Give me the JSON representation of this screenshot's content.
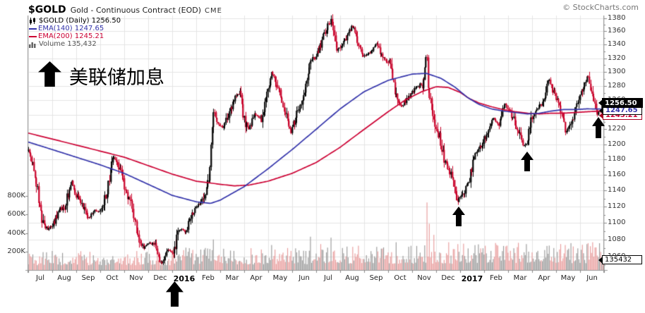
{
  "header": {
    "symbol": "$GOLD",
    "description": "Gold - Continuous Contract (EOD)",
    "exchange": "CME",
    "credit": "© StockCharts.com"
  },
  "legend": {
    "symbol_row": "$GOLD (Daily) 1256.50",
    "ema140_row": "EMA(140) 1247.65",
    "ema200_row": "EMA(200) 1245.21",
    "volume_row": "Volume 135,432"
  },
  "annotation": {
    "text": "美联储加息"
  },
  "boxes": {
    "last_price": "1256.50",
    "ema140_value": "1247.65",
    "ema200_value": "1245.21",
    "volume_value": "135432"
  },
  "colors": {
    "candle_up": "#000000",
    "candle_down": "#c80028",
    "ema140": "#3333aa",
    "ema200": "#cc0033",
    "volume_up": "#9a9a9a",
    "volume_down": "#e89c9c",
    "grid": "#e4e4e4",
    "axis": "#999999",
    "tick": "#888888",
    "arrow": "#000000"
  },
  "chart_data": {
    "type": "candlestick",
    "title": "$GOLD Gold - Continuous Contract (EOD) CME",
    "timeframe": "Daily, Jul 2015 - Jun 2017",
    "legend_position": "top-left",
    "grid": true,
    "x_axis": {
      "labels": [
        "Jul",
        "Aug",
        "Sep",
        "Oct",
        "Nov",
        "Dec",
        "2016",
        "Feb",
        "Mar",
        "Apr",
        "May",
        "Jun",
        "Jul",
        "Aug",
        "Sep",
        "Oct",
        "Nov",
        "Dec",
        "2017",
        "Feb",
        "Mar",
        "Apr",
        "May",
        "Jun"
      ],
      "bold_indices": [
        6,
        18
      ]
    },
    "y_axis": {
      "scale": "log",
      "ticks": [
        1060,
        1080,
        1100,
        1120,
        1140,
        1160,
        1180,
        1200,
        1220,
        1240,
        1260,
        1280,
        1300,
        1320,
        1340,
        1360,
        1380
      ],
      "range": [
        1044,
        1384
      ]
    },
    "volume_axis": {
      "ticks": [
        {
          "label": "200K",
          "k": 200
        },
        {
          "label": "400K",
          "k": 400
        },
        {
          "label": "600K",
          "k": 600
        },
        {
          "label": "800K",
          "k": 800
        }
      ],
      "unit": "thousands of contracts"
    },
    "last_values": {
      "close": 1256.5,
      "ema140": 1247.65,
      "ema200": 1245.21,
      "volume": 135432
    },
    "price_close_anchors": [
      [
        0,
        1192
      ],
      [
        0.25,
        1170
      ],
      [
        0.55,
        1104
      ],
      [
        0.8,
        1092
      ],
      [
        1,
        1096
      ],
      [
        1.3,
        1116
      ],
      [
        1.55,
        1121
      ],
      [
        1.8,
        1153
      ],
      [
        2,
        1134
      ],
      [
        2.25,
        1124
      ],
      [
        2.5,
        1105
      ],
      [
        2.75,
        1115
      ],
      [
        3,
        1114
      ],
      [
        3.3,
        1140
      ],
      [
        3.55,
        1184
      ],
      [
        3.8,
        1166
      ],
      [
        4.05,
        1142
      ],
      [
        4.3,
        1120
      ],
      [
        4.55,
        1086
      ],
      [
        4.8,
        1070
      ],
      [
        5.05,
        1076
      ],
      [
        5.3,
        1072
      ],
      [
        5.55,
        1050
      ],
      [
        5.8,
        1068
      ],
      [
        6.05,
        1062
      ],
      [
        6.3,
        1095
      ],
      [
        6.55,
        1088
      ],
      [
        6.8,
        1112
      ],
      [
        7.05,
        1120
      ],
      [
        7.3,
        1128
      ],
      [
        7.55,
        1160
      ],
      [
        7.7,
        1242
      ],
      [
        7.9,
        1230
      ],
      [
        8.1,
        1222
      ],
      [
        8.3,
        1238
      ],
      [
        8.6,
        1262
      ],
      [
        8.8,
        1272
      ],
      [
        9,
        1232
      ],
      [
        9.2,
        1220
      ],
      [
        9.45,
        1242
      ],
      [
        9.7,
        1232
      ],
      [
        9.95,
        1270
      ],
      [
        10.15,
        1300
      ],
      [
        10.4,
        1276
      ],
      [
        10.65,
        1252
      ],
      [
        10.95,
        1214
      ],
      [
        11.2,
        1247
      ],
      [
        11.5,
        1262
      ],
      [
        11.75,
        1320
      ],
      [
        11.95,
        1318
      ],
      [
        12.2,
        1342
      ],
      [
        12.45,
        1366
      ],
      [
        12.65,
        1376
      ],
      [
        12.85,
        1330
      ],
      [
        13.1,
        1342
      ],
      [
        13.3,
        1352
      ],
      [
        13.5,
        1370
      ],
      [
        13.75,
        1344
      ],
      [
        14,
        1322
      ],
      [
        14.25,
        1330
      ],
      [
        14.5,
        1342
      ],
      [
        14.8,
        1320
      ],
      [
        15.1,
        1312
      ],
      [
        15.3,
        1268
      ],
      [
        15.55,
        1252
      ],
      [
        15.8,
        1262
      ],
      [
        16.1,
        1276
      ],
      [
        16.45,
        1282
      ],
      [
        16.6,
        1335
      ],
      [
        16.66,
        1272
      ],
      [
        16.9,
        1236
      ],
      [
        17.15,
        1208
      ],
      [
        17.4,
        1172
      ],
      [
        17.65,
        1158
      ],
      [
        17.9,
        1128
      ],
      [
        18.1,
        1134
      ],
      [
        18.35,
        1152
      ],
      [
        18.6,
        1182
      ],
      [
        18.85,
        1196
      ],
      [
        19.1,
        1216
      ],
      [
        19.35,
        1236
      ],
      [
        19.6,
        1226
      ],
      [
        19.85,
        1256
      ],
      [
        20.1,
        1242
      ],
      [
        20.35,
        1226
      ],
      [
        20.6,
        1200
      ],
      [
        20.75,
        1198
      ],
      [
        20.95,
        1230
      ],
      [
        21.2,
        1250
      ],
      [
        21.45,
        1258
      ],
      [
        21.7,
        1290
      ],
      [
        21.95,
        1266
      ],
      [
        22.15,
        1256
      ],
      [
        22.4,
        1216
      ],
      [
        22.65,
        1232
      ],
      [
        22.9,
        1256
      ],
      [
        23.1,
        1272
      ],
      [
        23.3,
        1296
      ],
      [
        23.5,
        1268
      ],
      [
        23.7,
        1242
      ],
      [
        23.9,
        1250
      ],
      [
        24,
        1256.5
      ]
    ],
    "ema140_anchors": [
      [
        0,
        1203
      ],
      [
        1,
        1193
      ],
      [
        2,
        1183
      ],
      [
        3,
        1173
      ],
      [
        4,
        1162
      ],
      [
        5,
        1148
      ],
      [
        6,
        1134
      ],
      [
        7,
        1126
      ],
      [
        7.6,
        1124
      ],
      [
        8,
        1128
      ],
      [
        9,
        1145
      ],
      [
        10,
        1168
      ],
      [
        11,
        1193
      ],
      [
        12,
        1220
      ],
      [
        13,
        1248
      ],
      [
        14,
        1272
      ],
      [
        15,
        1288
      ],
      [
        16,
        1297
      ],
      [
        16.6,
        1298
      ],
      [
        17.2,
        1291
      ],
      [
        17.8,
        1278
      ],
      [
        18.3,
        1264
      ],
      [
        18.8,
        1254
      ],
      [
        19.3,
        1248
      ],
      [
        19.8,
        1245
      ],
      [
        20.3,
        1243
      ],
      [
        20.8,
        1241
      ],
      [
        21.3,
        1242
      ],
      [
        21.8,
        1245
      ],
      [
        22.3,
        1247
      ],
      [
        22.8,
        1247
      ],
      [
        23.3,
        1248
      ],
      [
        24,
        1247.65
      ]
    ],
    "ema200_anchors": [
      [
        0,
        1215
      ],
      [
        1,
        1207
      ],
      [
        2,
        1199
      ],
      [
        3,
        1191
      ],
      [
        4,
        1183
      ],
      [
        5,
        1172
      ],
      [
        6,
        1161
      ],
      [
        7,
        1152
      ],
      [
        8,
        1148
      ],
      [
        8.6,
        1146
      ],
      [
        9.2,
        1147
      ],
      [
        10,
        1152
      ],
      [
        11,
        1162
      ],
      [
        12,
        1176
      ],
      [
        13,
        1196
      ],
      [
        14,
        1220
      ],
      [
        15,
        1244
      ],
      [
        15.7,
        1260
      ],
      [
        16.4,
        1272
      ],
      [
        17,
        1279
      ],
      [
        17.5,
        1278
      ],
      [
        18,
        1271
      ],
      [
        18.4,
        1262
      ],
      [
        18.8,
        1256
      ],
      [
        19.3,
        1251
      ],
      [
        19.8,
        1247
      ],
      [
        20.3,
        1244
      ],
      [
        20.8,
        1242
      ],
      [
        21.3,
        1241
      ],
      [
        21.8,
        1242
      ],
      [
        22.3,
        1242
      ],
      [
        22.8,
        1243
      ],
      [
        23.3,
        1244
      ],
      [
        24,
        1245.21
      ]
    ],
    "volume_spikes_k": [
      [
        7.72,
        330
      ],
      [
        10.15,
        270
      ],
      [
        11.78,
        360
      ],
      [
        12.2,
        280
      ],
      [
        12.62,
        350
      ],
      [
        14.5,
        250
      ],
      [
        15.32,
        300
      ],
      [
        16.62,
        730
      ],
      [
        16.71,
        500
      ],
      [
        16.9,
        380
      ],
      [
        17.52,
        300
      ],
      [
        17.9,
        280
      ],
      [
        19.8,
        260
      ],
      [
        20.75,
        280
      ],
      [
        21.6,
        260
      ],
      [
        22.4,
        270
      ],
      [
        23.3,
        280
      ],
      [
        23.52,
        300
      ]
    ],
    "annotations": {
      "note": "black up-arrows mark Fed rate hikes (美联储加息)",
      "arrows": [
        {
          "kind": "below-axis",
          "t": 6.09,
          "w": 25,
          "h": 36,
          "event": "Dec 2015 hike"
        },
        {
          "kind": "chart",
          "t": 17.95,
          "price": 1120,
          "w": 18,
          "h": 28,
          "event": "Dec 2016 hike"
        },
        {
          "kind": "chart",
          "t": 20.8,
          "price": 1190,
          "w": 18,
          "h": 28,
          "event": "Mar 2017 hike"
        },
        {
          "kind": "chart",
          "t": 23.77,
          "price": 1237,
          "w": 18,
          "h": 30,
          "event": "Jun 2017 hike"
        }
      ]
    }
  }
}
